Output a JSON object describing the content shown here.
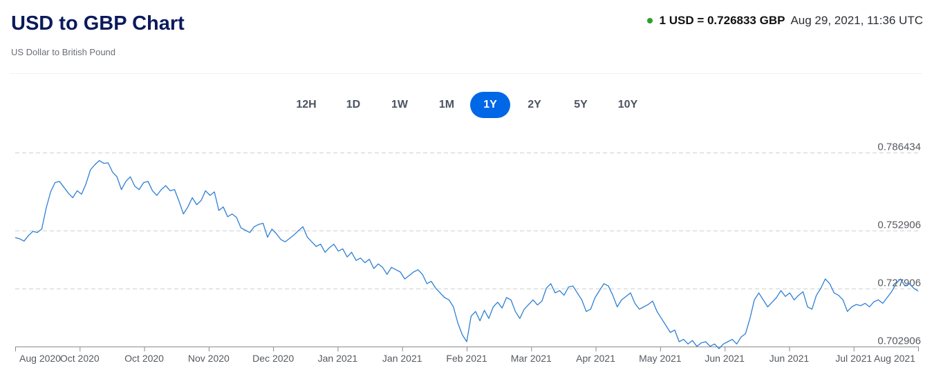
{
  "header": {
    "title": "USD to GBP Chart",
    "subtitle": "US Dollar to British Pound",
    "rate": "1 USD = 0.726833 GBP",
    "timestamp": "Aug 29, 2021, 11:36 UTC"
  },
  "colors": {
    "accent": "#0067e6",
    "line": "#2d7fd3",
    "status": "#2ca02c",
    "title": "#0b1a5c"
  },
  "range_tabs": [
    {
      "label": "12H",
      "active": false
    },
    {
      "label": "1D",
      "active": false
    },
    {
      "label": "1W",
      "active": false
    },
    {
      "label": "1M",
      "active": false
    },
    {
      "label": "1Y",
      "active": true
    },
    {
      "label": "2Y",
      "active": false
    },
    {
      "label": "5Y",
      "active": false
    },
    {
      "label": "10Y",
      "active": false
    }
  ],
  "chart_data": {
    "type": "line",
    "title": "USD to GBP Chart",
    "xlabel": "",
    "ylabel": "",
    "grid": true,
    "ylim": [
      0.702906,
      0.786434
    ],
    "yticks": [
      0.786434,
      0.752906,
      0.727906,
      0.702906
    ],
    "ytick_labels": [
      "0.786434",
      "0.752906",
      "0.727906",
      "0.702906"
    ],
    "xtick_labels": [
      "Aug 2020",
      "Oct 2020",
      "Oct 2020",
      "Nov 2020",
      "Dec 2020",
      "Jan 2021",
      "Jan 2021",
      "Feb 2021",
      "Mar 2021",
      "Apr 2021",
      "May 2021",
      "Jun 2021",
      "Jun 2021",
      "Jul 2021",
      "Aug 2021"
    ],
    "series": [
      {
        "name": "USD/GBP",
        "values": [
          0.7498,
          0.7493,
          0.7483,
          0.7507,
          0.7525,
          0.752,
          0.7535,
          0.7625,
          0.7695,
          0.7735,
          0.774,
          0.7715,
          0.769,
          0.767,
          0.77,
          0.7685,
          0.773,
          0.779,
          0.7812,
          0.783,
          0.7818,
          0.782,
          0.778,
          0.776,
          0.7705,
          0.774,
          0.776,
          0.772,
          0.7705,
          0.7735,
          0.774,
          0.77,
          0.768,
          0.7705,
          0.7722,
          0.77,
          0.7705,
          0.7655,
          0.76,
          0.763,
          0.767,
          0.764,
          0.7658,
          0.77,
          0.768,
          0.7695,
          0.7615,
          0.763,
          0.7588,
          0.76,
          0.7585,
          0.754,
          0.753,
          0.752,
          0.7545,
          0.7555,
          0.756,
          0.75,
          0.7535,
          0.7515,
          0.749,
          0.748,
          0.7495,
          0.751,
          0.7528,
          0.7545,
          0.75,
          0.748,
          0.746,
          0.747,
          0.7435,
          0.7455,
          0.747,
          0.744,
          0.745,
          0.7415,
          0.7435,
          0.74,
          0.741,
          0.739,
          0.7405,
          0.7365,
          0.7385,
          0.737,
          0.734,
          0.737,
          0.736,
          0.735,
          0.732,
          0.7335,
          0.735,
          0.736,
          0.734,
          0.73,
          0.731,
          0.728,
          0.726,
          0.724,
          0.723,
          0.72,
          0.713,
          0.708,
          0.705,
          0.716,
          0.718,
          0.714,
          0.7185,
          0.715,
          0.72,
          0.722,
          0.7195,
          0.724,
          0.723,
          0.718,
          0.715,
          0.719,
          0.721,
          0.723,
          0.7208,
          0.7225,
          0.728,
          0.73,
          0.726,
          0.727,
          0.725,
          0.7285,
          0.729,
          0.726,
          0.723,
          0.718,
          0.719,
          0.724,
          0.727,
          0.73,
          0.729,
          0.725,
          0.72,
          0.723,
          0.7245,
          0.726,
          0.7215,
          0.719,
          0.72,
          0.721,
          0.7225,
          0.718,
          0.715,
          0.712,
          0.709,
          0.71,
          0.705,
          0.706,
          0.704,
          0.7055,
          0.703,
          0.7045,
          0.705,
          0.703,
          0.704,
          0.702,
          0.704,
          0.705,
          0.706,
          0.704,
          0.707,
          0.7085,
          0.715,
          0.723,
          0.726,
          0.723,
          0.72,
          0.722,
          0.724,
          0.727,
          0.7245,
          0.726,
          0.723,
          0.725,
          0.7265,
          0.72,
          0.719,
          0.725,
          0.728,
          0.732,
          0.73,
          0.726,
          0.725,
          0.723,
          0.718,
          0.72,
          0.721,
          0.7205,
          0.7215,
          0.72,
          0.7222,
          0.723,
          0.7215,
          0.724,
          0.7265,
          0.73,
          0.732,
          0.729,
          0.73,
          0.728,
          0.7268
        ]
      }
    ],
    "final_value": 0.726833
  }
}
